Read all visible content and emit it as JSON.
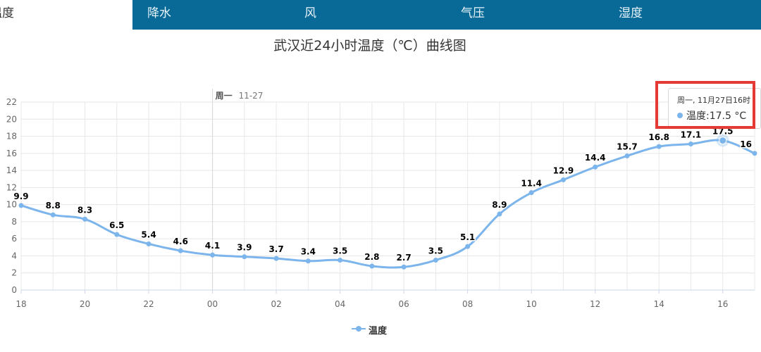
{
  "tabs": [
    {
      "label": "温度",
      "active": true
    },
    {
      "label": "降水",
      "active": false
    },
    {
      "label": "风",
      "active": false
    },
    {
      "label": "气压",
      "active": false
    },
    {
      "label": "湿度",
      "active": false
    }
  ],
  "chart_data": {
    "type": "line",
    "title": "武汉近24小时温度（℃）曲线图",
    "xlabel": "",
    "ylabel": "",
    "ylim": [
      0,
      22
    ],
    "yticks": [
      0,
      2,
      4,
      6,
      8,
      10,
      12,
      14,
      16,
      18,
      20,
      22
    ],
    "x": [
      "18",
      "19",
      "20",
      "21",
      "22",
      "23",
      "00",
      "01",
      "02",
      "03",
      "04",
      "05",
      "06",
      "07",
      "08",
      "09",
      "10",
      "11",
      "12",
      "13",
      "14",
      "15",
      "16",
      "17"
    ],
    "xtick_labels": [
      "18",
      "20",
      "22",
      "00",
      "02",
      "04",
      "06",
      "08",
      "10",
      "12",
      "14",
      "16"
    ],
    "day_marker": {
      "weekday": "周一",
      "date": "11-27"
    },
    "series": [
      {
        "name": "温度",
        "color": "#7cb5ec",
        "values": [
          9.9,
          8.8,
          8.3,
          6.5,
          5.4,
          4.6,
          4.1,
          3.9,
          3.7,
          3.4,
          3.5,
          2.8,
          2.7,
          3.5,
          5.1,
          8.9,
          11.4,
          12.9,
          14.4,
          15.7,
          16.8,
          17.1,
          17.5,
          16
        ]
      }
    ],
    "grid": true,
    "legend_position": "bottom-center"
  },
  "tooltip": {
    "header": "周一, 11月27日16时",
    "series_label": "温度",
    "value_text": "17.5 °C"
  },
  "legend": {
    "label": "温度"
  }
}
